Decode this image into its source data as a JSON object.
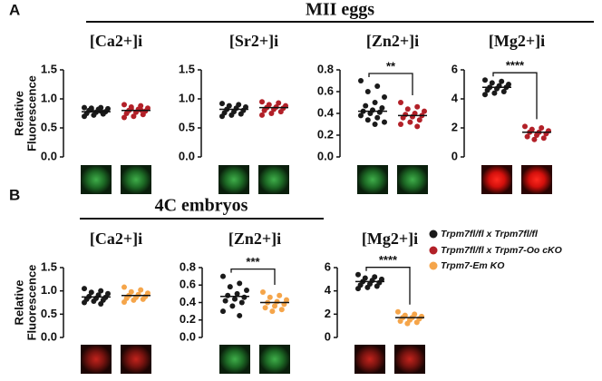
{
  "figure": {
    "panels": [
      {
        "label": "A",
        "title": "MII eggs"
      },
      {
        "label": "B",
        "title": "4C embryos"
      }
    ]
  },
  "chart_data": [
    {
      "type": "strip",
      "title": "[Ca2+]i",
      "ylabel": [
        "Relative",
        "Fluorescence"
      ],
      "ylim": [
        0,
        1.5
      ],
      "yticks": [
        {
          "value": 0,
          "label": "0.0"
        },
        {
          "value": 0.5,
          "label": "0.5"
        },
        {
          "value": 1,
          "label": "1.0"
        },
        {
          "value": 1.5,
          "label": "1.5"
        }
      ],
      "series": [
        {
          "name": "Trpm7fl/fl x Trpm7fl/fl",
          "color": "#1a1a1a",
          "mean": 0.78,
          "values": [
            0.85,
            0.85,
            0.84,
            0.83,
            0.82,
            0.8,
            0.78,
            0.77,
            0.75,
            0.74,
            0.72,
            0.7,
            0.79,
            0.81
          ]
        },
        {
          "name": "Trpm7fl/fl x Trpm7-Oo cKO",
          "color": "#b22028",
          "mean": 0.8,
          "values": [
            0.9,
            0.88,
            0.86,
            0.84,
            0.82,
            0.8,
            0.79,
            0.77,
            0.75,
            0.73,
            0.7,
            0.68,
            0.81,
            0.83
          ]
        }
      ]
    },
    {
      "type": "strip",
      "title": "[Sr2+]i",
      "ylim": [
        0,
        1.5
      ],
      "yticks": [
        {
          "value": 0,
          "label": "0.0"
        },
        {
          "value": 0.5,
          "label": "0.5"
        },
        {
          "value": 1,
          "label": "1.0"
        },
        {
          "value": 1.5,
          "label": "1.5"
        }
      ],
      "series": [
        {
          "color": "#1a1a1a",
          "mean": 0.82,
          "values": [
            0.92,
            0.9,
            0.88,
            0.86,
            0.84,
            0.82,
            0.8,
            0.78,
            0.76,
            0.74,
            0.72,
            0.7
          ]
        },
        {
          "color": "#b22028",
          "mean": 0.85,
          "values": [
            0.95,
            0.93,
            0.9,
            0.88,
            0.86,
            0.85,
            0.84,
            0.82,
            0.8,
            0.78,
            0.75,
            0.72
          ]
        }
      ]
    },
    {
      "type": "strip",
      "title": "[Zn2+]i",
      "annotation": "**",
      "ylim": [
        0,
        0.8
      ],
      "yticks": [
        {
          "value": 0,
          "label": "0.0"
        },
        0.2,
        0.4,
        0.6,
        0.8
      ],
      "series": [
        {
          "color": "#1a1a1a",
          "mean": 0.42,
          "values": [
            0.7,
            0.65,
            0.6,
            0.55,
            0.5,
            0.47,
            0.45,
            0.43,
            0.42,
            0.41,
            0.4,
            0.38,
            0.36,
            0.34,
            0.32,
            0.3
          ]
        },
        {
          "color": "#b22028",
          "mean": 0.38,
          "values": [
            0.5,
            0.46,
            0.44,
            0.42,
            0.4,
            0.39,
            0.38,
            0.37,
            0.36,
            0.34,
            0.32,
            0.3,
            0.28
          ]
        }
      ]
    },
    {
      "type": "strip",
      "title": "[Mg2+]i",
      "annotation": "****",
      "ylim": [
        0,
        6
      ],
      "yticks": [
        0,
        2,
        4,
        6
      ],
      "series": [
        {
          "color": "#1a1a1a",
          "mean": 4.8,
          "values": [
            5.3,
            5.2,
            5.1,
            5.0,
            4.9,
            4.8,
            4.8,
            4.7,
            4.6,
            4.5,
            4.4,
            4.3
          ]
        },
        {
          "color": "#b22028",
          "mean": 1.7,
          "values": [
            2.1,
            2.0,
            1.9,
            1.8,
            1.7,
            1.7,
            1.6,
            1.5,
            1.4,
            1.3,
            1.2
          ]
        }
      ]
    },
    {
      "type": "strip",
      "title": "[Ca2+]i",
      "ylabel": [
        "Relative",
        "Fluorescence"
      ],
      "ylim": [
        0,
        1.5
      ],
      "yticks": [
        {
          "value": 0,
          "label": "0.0"
        },
        {
          "value": 0.5,
          "label": "0.5"
        },
        {
          "value": 1,
          "label": "1.0"
        },
        {
          "value": 1.5,
          "label": "1.5"
        }
      ],
      "series": [
        {
          "color": "#1a1a1a",
          "mean": 0.87,
          "values": [
            1.05,
            1.0,
            0.97,
            0.94,
            0.91,
            0.88,
            0.86,
            0.84,
            0.82,
            0.8,
            0.78,
            0.75,
            0.72
          ]
        },
        {
          "name": "Trpm7-Em KO",
          "color": "#f5a54a",
          "mean": 0.9,
          "values": [
            1.08,
            1.02,
            0.98,
            0.95,
            0.92,
            0.9,
            0.88,
            0.86,
            0.84,
            0.82,
            0.8,
            0.76
          ]
        }
      ]
    },
    {
      "type": "strip",
      "title": "[Zn2+]i",
      "annotation": "***",
      "ylim": [
        0,
        0.8
      ],
      "yticks": [
        {
          "value": 0,
          "label": "0.0"
        },
        0.2,
        0.4,
        0.6,
        0.8
      ],
      "series": [
        {
          "color": "#1a1a1a",
          "mean": 0.47,
          "values": [
            0.7,
            0.62,
            0.58,
            0.54,
            0.5,
            0.48,
            0.46,
            0.44,
            0.42,
            0.4,
            0.36,
            0.3,
            0.25
          ]
        },
        {
          "color": "#f5a54a",
          "mean": 0.4,
          "values": [
            0.52,
            0.48,
            0.46,
            0.43,
            0.41,
            0.4,
            0.38,
            0.36,
            0.34,
            0.32,
            0.3
          ]
        }
      ]
    },
    {
      "type": "strip",
      "title": "[Mg2+]i",
      "annotation": "****",
      "ylim": [
        0,
        6
      ],
      "yticks": [
        0,
        2,
        4,
        6
      ],
      "series": [
        {
          "color": "#1a1a1a",
          "mean": 4.8,
          "values": [
            5.4,
            5.2,
            5.1,
            5.0,
            4.9,
            4.8,
            4.7,
            4.6,
            4.5,
            4.4,
            4.3,
            4.2
          ]
        },
        {
          "color": "#f5a54a",
          "mean": 1.7,
          "values": [
            2.2,
            2.0,
            1.9,
            1.8,
            1.7,
            1.7,
            1.6,
            1.5,
            1.4,
            1.3,
            1.2
          ]
        }
      ]
    }
  ]
}
